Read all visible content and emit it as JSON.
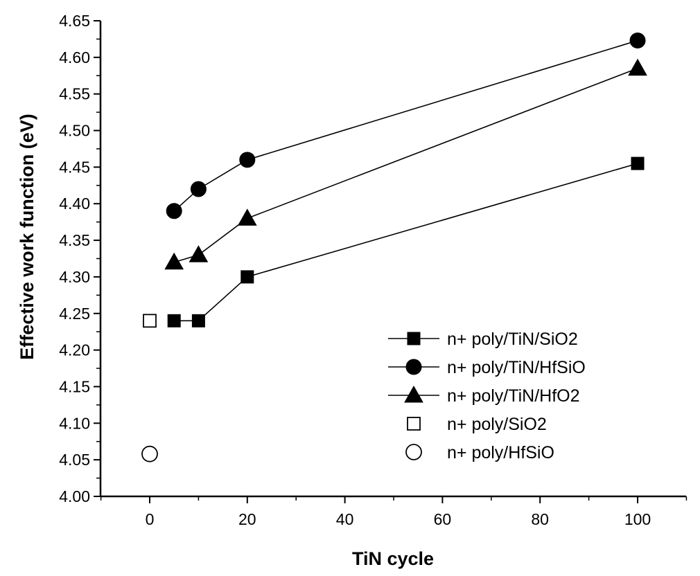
{
  "chart_data": {
    "type": "line",
    "title": "",
    "xlabel": "TiN cycle",
    "ylabel": "Effective work function (eV)",
    "xlim": [
      -10,
      110
    ],
    "ylim": [
      4.0,
      4.65
    ],
    "x_ticks": [
      0,
      20,
      40,
      60,
      80,
      100
    ],
    "x_tick_labels": [
      "0",
      "20",
      "40",
      "60",
      "80",
      "100"
    ],
    "y_ticks": [
      4.0,
      4.05,
      4.1,
      4.15,
      4.2,
      4.25,
      4.3,
      4.35,
      4.4,
      4.45,
      4.5,
      4.55,
      4.6,
      4.65
    ],
    "y_tick_labels": [
      "4.00",
      "4.05",
      "4.10",
      "4.15",
      "4.20",
      "4.25",
      "4.30",
      "4.35",
      "4.40",
      "4.45",
      "4.50",
      "4.55",
      "4.60",
      "4.65"
    ],
    "grid": false,
    "legend_position": "bottom-right",
    "series": [
      {
        "name": "n+ poly/TiN/SiO2",
        "marker": "square",
        "filled": true,
        "line": true,
        "x": [
          5,
          10,
          20,
          100
        ],
        "y": [
          4.24,
          4.24,
          4.3,
          4.455
        ]
      },
      {
        "name": "n+ poly/TiN/HfSiO",
        "marker": "circle",
        "filled": true,
        "line": true,
        "x": [
          5,
          10,
          20,
          100
        ],
        "y": [
          4.39,
          4.42,
          4.46,
          4.623
        ]
      },
      {
        "name": "n+ poly/TiN/HfO2",
        "marker": "triangle",
        "filled": true,
        "line": true,
        "x": [
          5,
          10,
          20,
          100
        ],
        "y": [
          4.32,
          4.33,
          4.38,
          4.585
        ]
      },
      {
        "name": "n+ poly/SiO2",
        "marker": "square",
        "filled": false,
        "line": false,
        "x": [
          0
        ],
        "y": [
          4.24
        ]
      },
      {
        "name": "n+ poly/HfSiO",
        "marker": "circle",
        "filled": false,
        "line": false,
        "x": [
          0
        ],
        "y": [
          4.058
        ]
      }
    ]
  }
}
